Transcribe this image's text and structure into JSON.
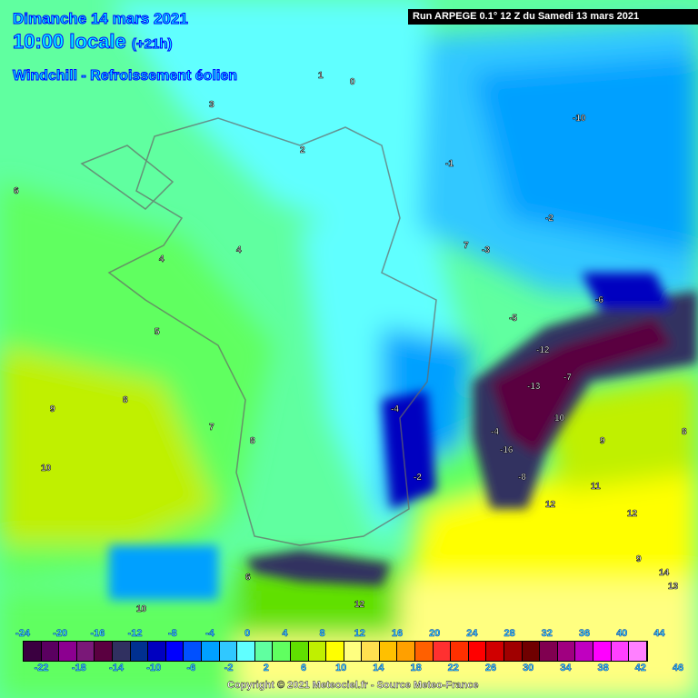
{
  "header": {
    "date": "Dimanche 14 mars 2021",
    "time": "10:00 locale",
    "lead": "(+21h)",
    "parameter": "Windchill - Refroissement éolien",
    "run": "Run ARPEGE 0.1° 12 Z du Samedi 13 mars 2021"
  },
  "legend": {
    "colors": [
      "#3a0040",
      "#5a0060",
      "#8c0090",
      "#7a1878",
      "#5a0040",
      "#303060",
      "#003090",
      "#0000c0",
      "#0000ff",
      "#0050ff",
      "#00a0ff",
      "#30c8ff",
      "#60ffff",
      "#60ffa0",
      "#60ff60",
      "#60e000",
      "#c0f000",
      "#ffff00",
      "#ffff80",
      "#ffe050",
      "#ffc000",
      "#ffa000",
      "#ff6000",
      "#ff3030",
      "#ff3000",
      "#ff0000",
      "#d00000",
      "#a00000",
      "#700000",
      "#800050",
      "#a00080",
      "#c000c0",
      "#ff00ff",
      "#ff40ff",
      "#ff80ff"
    ],
    "top_labels": [
      "-24",
      "-20",
      "-16",
      "-12",
      "-8",
      "-4",
      "0",
      "4",
      "8",
      "12",
      "16",
      "20",
      "24",
      "28",
      "32",
      "36",
      "40",
      "44"
    ],
    "bottom_labels": [
      "-22",
      "-18",
      "-14",
      "-10",
      "-6",
      "-2",
      "2",
      "6",
      "10",
      "14",
      "18",
      "22",
      "26",
      "30",
      "34",
      "38",
      "42",
      "46"
    ]
  },
  "copyright": "Copyright © 2021 Meteociel.fr - Source Meteo-France",
  "contour_labels": [
    "0",
    "1",
    "2",
    "-1",
    "-3",
    "-2",
    "4",
    "3",
    "6",
    "5",
    "4",
    "7",
    "8",
    "9",
    "10",
    "9",
    "7",
    "8",
    "11",
    "12",
    "10",
    "-5",
    "-6",
    "-12",
    "-13",
    "-16",
    "-8",
    "-4",
    "-7",
    "-10",
    "12",
    "9",
    "13",
    "14",
    "8",
    "10",
    "12",
    "6",
    "-2",
    "-4"
  ]
}
